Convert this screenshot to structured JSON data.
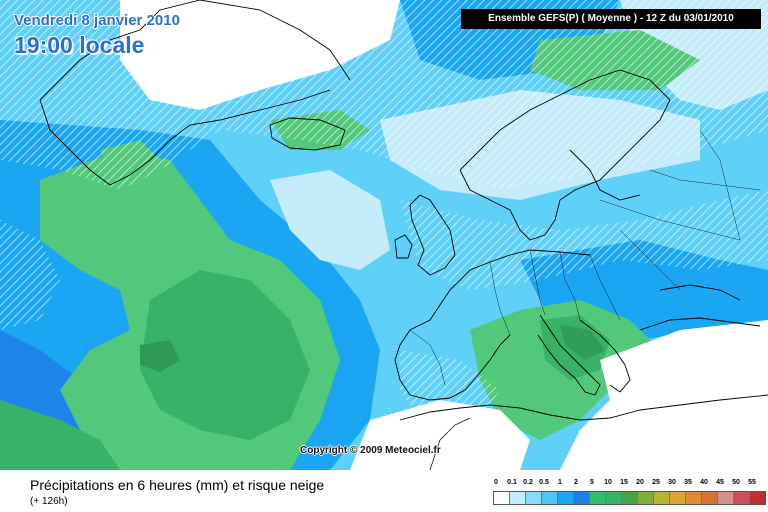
{
  "header": {
    "date": "Vendredi 8 janvier 2010",
    "time": "19:00 locale",
    "model_run": "Ensemble GEFS(P) ( Moyenne )   - 12 Z du 03/01/2010"
  },
  "map": {
    "copyright": "Copyright © 2009 Meteociel.fr",
    "colors": {
      "ocean_light": "#c4ecfa",
      "ocean_mid": "#5fd0f8",
      "ocean_deep": "#1aa6f2",
      "blue_band": "#1e7fe8",
      "green_light": "#52c97a",
      "green_mid": "#38b268",
      "green_dark": "#2f9a58",
      "snow_hatch": "#ffffff",
      "coast": "#000000"
    }
  },
  "footer": {
    "title": "Précipitations en 6 heures (mm) et risque neige",
    "subtitle": "(+ 126h)"
  },
  "legend": {
    "labels": [
      "0",
      "0.1",
      "0.2",
      "0.5",
      "1",
      "2",
      "5",
      "10",
      "15",
      "20",
      "25",
      "30",
      "35",
      "40",
      "45",
      "50",
      "55"
    ],
    "colors": [
      "#ffffff",
      "#c4ecfa",
      "#86dcf8",
      "#4cc6f5",
      "#1aa6f2",
      "#1e7fe8",
      "#2ec06a",
      "#38b268",
      "#49a24a",
      "#7fae3a",
      "#b6b430",
      "#d8a530",
      "#e08a30",
      "#d8703a",
      "#d4908a",
      "#c85060",
      "#c03030"
    ]
  }
}
